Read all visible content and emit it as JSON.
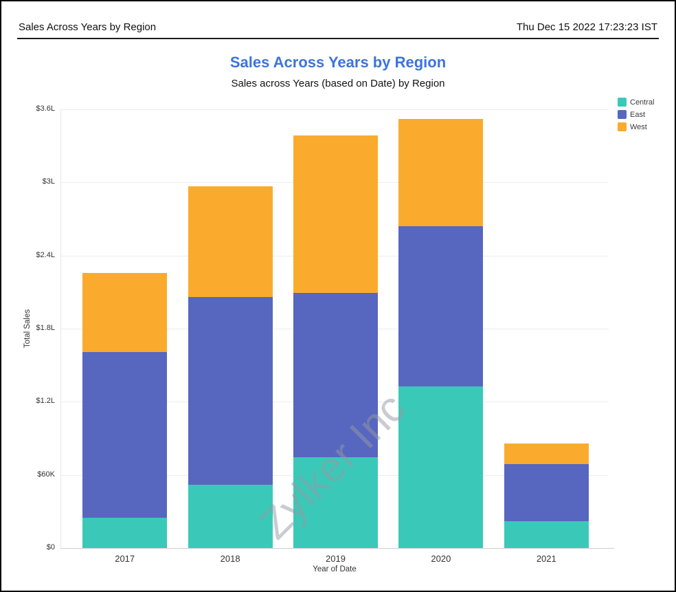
{
  "page": {
    "header": {
      "title": "Sales Across Years by Region",
      "timestamp": "Thu Dec 15 2022 17:23:23 IST"
    }
  },
  "chart": {
    "title_color": "#3B74DB",
    "watermark": "Zylker Inc",
    "background": "#ffffff"
  },
  "chart_data": {
    "type": "bar",
    "stacked": true,
    "title": "Sales Across Years by Region",
    "subtitle": "Sales across Years (based on Date) by Region",
    "xlabel": "Year of Date",
    "ylabel": "Total Sales",
    "categories": [
      "2017",
      "2018",
      "2019",
      "2020",
      "2021"
    ],
    "series": [
      {
        "name": "Central",
        "color": "#3AC9B8",
        "values": [
          25000,
          52000,
          74500,
          132500,
          22000
        ]
      },
      {
        "name": "East",
        "color": "#5766BF",
        "values": [
          136000,
          154000,
          135000,
          131500,
          47000
        ]
      },
      {
        "name": "West",
        "color": "#FAAB2D",
        "values": [
          64500,
          91000,
          129000,
          88000,
          17000
        ]
      }
    ],
    "totals": [
      225500,
      297000,
      338500,
      352000,
      86000
    ],
    "ylim": [
      0,
      360000
    ],
    "ytick_values": [
      0,
      60000,
      120000,
      180000,
      240000,
      300000,
      360000
    ],
    "ytick_labels": [
      "$0",
      "$60K",
      "$1.2L",
      "$1.8L",
      "$2.4L",
      "$3L",
      "$3.6L"
    ],
    "legend_position": "top-right",
    "grid": true
  }
}
